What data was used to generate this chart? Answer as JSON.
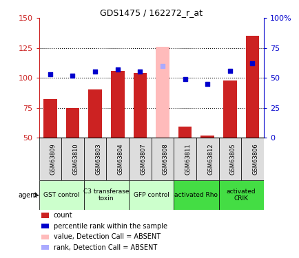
{
  "title": "GDS1475 / 162272_r_at",
  "samples": [
    "GSM63809",
    "GSM63810",
    "GSM63803",
    "GSM63804",
    "GSM63807",
    "GSM63808",
    "GSM63811",
    "GSM63812",
    "GSM63805",
    "GSM63806"
  ],
  "bar_values": [
    82,
    75,
    90,
    106,
    104,
    126,
    59,
    52,
    98,
    135
  ],
  "bar_absent": [
    false,
    false,
    false,
    false,
    false,
    true,
    false,
    false,
    false,
    false
  ],
  "rank_values": [
    53,
    52,
    55,
    57,
    55,
    60,
    49,
    45,
    56,
    62
  ],
  "rank_absent": [
    false,
    false,
    false,
    false,
    false,
    true,
    false,
    false,
    false,
    false
  ],
  "bar_color": "#cc2222",
  "bar_absent_color": "#ffbbbb",
  "rank_color": "#0000cc",
  "rank_absent_color": "#aaaaff",
  "ylim_left": [
    50,
    150
  ],
  "ylim_right": [
    0,
    100
  ],
  "yticks_left": [
    50,
    75,
    100,
    125,
    150
  ],
  "yticks_right": [
    0,
    25,
    50,
    75,
    100
  ],
  "ytick_labels_right": [
    "0",
    "25",
    "50",
    "75",
    "100%"
  ],
  "hlines": [
    75,
    100,
    125
  ],
  "agent_groups": [
    {
      "label": "GST control",
      "start": 0,
      "end": 2,
      "color": "#ccffcc"
    },
    {
      "label": "C3 transferase\ntoxin",
      "start": 2,
      "end": 4,
      "color": "#ccffcc"
    },
    {
      "label": "GFP control",
      "start": 4,
      "end": 6,
      "color": "#ccffcc"
    },
    {
      "label": "activated Rho",
      "start": 6,
      "end": 8,
      "color": "#44dd44"
    },
    {
      "label": "activated\nCRIK",
      "start": 8,
      "end": 10,
      "color": "#44dd44"
    }
  ],
  "legend_items": [
    {
      "color": "#cc2222",
      "label": "count"
    },
    {
      "color": "#0000cc",
      "label": "percentile rank within the sample"
    },
    {
      "color": "#ffbbbb",
      "label": "value, Detection Call = ABSENT"
    },
    {
      "color": "#aaaaff",
      "label": "rank, Detection Call = ABSENT"
    }
  ]
}
